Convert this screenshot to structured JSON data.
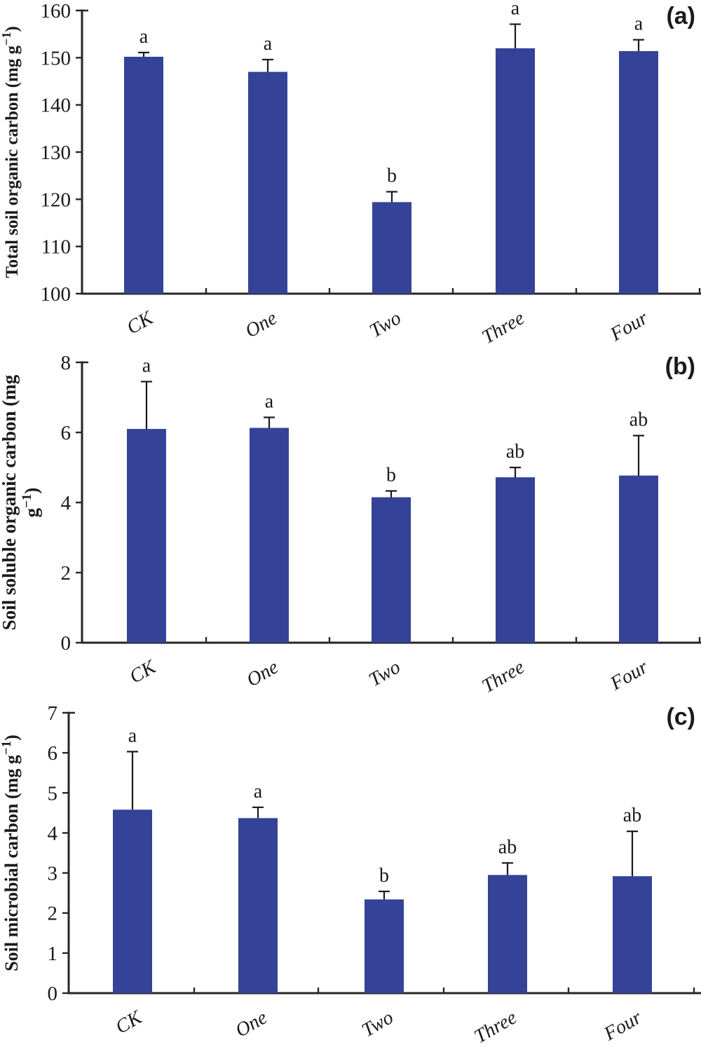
{
  "figure": {
    "background": "#ffffff",
    "bar_color": "#344397",
    "axis_color": "#262626",
    "error_bar_color": "#1a1a1a",
    "text_color": "#1a1a1a",
    "panel_labels": [
      "(a)",
      "(b)",
      "(c)"
    ]
  },
  "chart_data": [
    {
      "type": "bar",
      "panel_label": "(a)",
      "title": "",
      "xlabel": "",
      "ylabel": "Total soil organic carbon (mg g⁻¹)",
      "ylabel_lines": [
        {
          "pre": "Total soil organic carbon (mg g",
          "sup": "−1",
          "post": ")"
        }
      ],
      "categories": [
        "CK",
        "One",
        "Two",
        "Three",
        "Four"
      ],
      "values": [
        150.2,
        147.0,
        119.4,
        152.0,
        151.4
      ],
      "errors_plus": [
        0.9,
        2.6,
        2.2,
        5.1,
        2.4
      ],
      "sig_labels": [
        "a",
        "a",
        "b",
        "a",
        "a"
      ],
      "ylim": [
        100,
        160
      ],
      "yticks": [
        100,
        110,
        120,
        130,
        140,
        150,
        160
      ],
      "grid": false,
      "legend": null
    },
    {
      "type": "bar",
      "panel_label": "(b)",
      "title": "",
      "xlabel": "",
      "ylabel": "Soil soluble organic carbon (mg g⁻¹)",
      "ylabel_lines": [
        {
          "pre": "Soil soluble organic carbon (mg",
          "sup": "",
          "post": ""
        },
        {
          "pre": "g",
          "sup": "−1",
          "post": ")"
        }
      ],
      "categories": [
        "CK",
        "One",
        "Two",
        "Three",
        "Four"
      ],
      "values": [
        6.1,
        6.13,
        4.15,
        4.72,
        4.77
      ],
      "errors_plus": [
        1.35,
        0.3,
        0.18,
        0.28,
        1.14
      ],
      "sig_labels": [
        "a",
        "a",
        "b",
        "ab",
        "ab"
      ],
      "ylim": [
        0,
        8
      ],
      "yticks": [
        0,
        2,
        4,
        6,
        8
      ],
      "grid": false,
      "legend": null
    },
    {
      "type": "bar",
      "panel_label": "(c)",
      "title": "",
      "xlabel": "",
      "ylabel": "Soil microbial carbon (mg g⁻¹)",
      "ylabel_lines": [
        {
          "pre": "Soil microbial carbon (mg g",
          "sup": "−1",
          "post": ")"
        }
      ],
      "categories": [
        "CK",
        "One",
        "Two",
        "Three",
        "Four"
      ],
      "values": [
        4.58,
        4.37,
        2.34,
        2.95,
        2.92
      ],
      "errors_plus": [
        1.45,
        0.27,
        0.2,
        0.3,
        1.12
      ],
      "sig_labels": [
        "a",
        "a",
        "b",
        "ab",
        "ab"
      ],
      "ylim": [
        0,
        7
      ],
      "yticks": [
        0,
        1,
        2,
        3,
        4,
        5,
        6,
        7
      ],
      "grid": false,
      "legend": null
    }
  ]
}
